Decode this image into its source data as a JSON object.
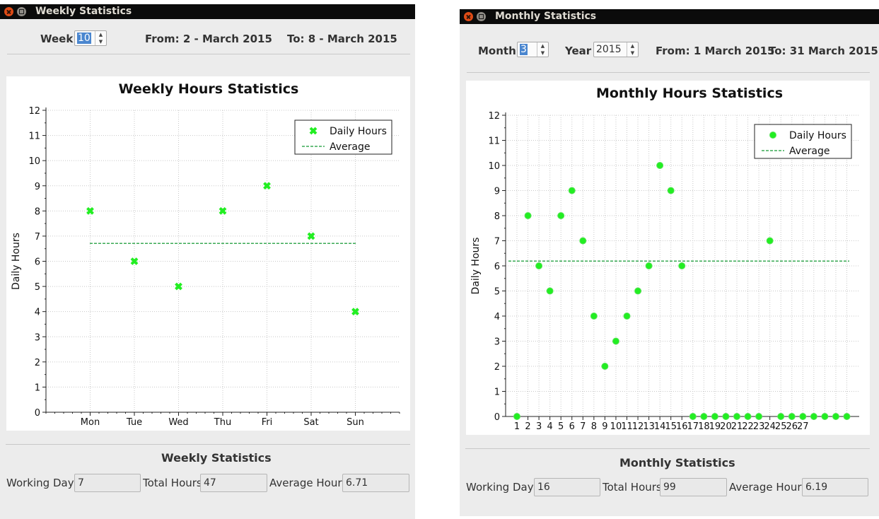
{
  "weekly": {
    "window_title": "Weekly Statistics",
    "week_label": "Week",
    "week_value": "10",
    "from_text": "From: 2 - March 2015",
    "to_text": "To: 8 - March 2015",
    "chart_title": "Weekly Hours Statistics",
    "stats_title": "Weekly Statistics",
    "working_days_label": "Working Days",
    "working_days_value": "7",
    "total_hours_label": "Total Hours",
    "total_hours_value": "47",
    "average_hours_label": "Average Hours",
    "average_hours_value": "6.71"
  },
  "monthly": {
    "window_title": "Monthly Statistics",
    "month_label": "Month",
    "month_value": "3",
    "year_label": "Year",
    "year_value": "2015",
    "from_text": "From: 1 March 2015",
    "to_text": "To: 31 March 2015",
    "chart_title": "Monthly Hours Statistics",
    "stats_title": "Monthly Statistics",
    "working_days_label": "Working Days",
    "working_days_value": "16",
    "total_hours_label": "Total Hours",
    "total_hours_value": "99",
    "average_hours_label": "Average Hours",
    "average_hours_value": "6.19"
  },
  "colors": {
    "point": "#22ee22",
    "average_line": "#3aaa55",
    "title_bar": "#0b0b0b",
    "close_button": "#df4b16"
  },
  "chart_data": [
    {
      "type": "scatter",
      "title": "Weekly Hours Statistics",
      "xlabel": "",
      "ylabel": "Daily Hours",
      "categories": [
        "Mon",
        "Tue",
        "Wed",
        "Thu",
        "Fri",
        "Sat",
        "Sun"
      ],
      "series": [
        {
          "name": "Daily Hours",
          "values": [
            8,
            6,
            5,
            8,
            9,
            7,
            4
          ]
        },
        {
          "name": "Average",
          "values": [
            6.71,
            6.71,
            6.71,
            6.71,
            6.71,
            6.71,
            6.71
          ]
        }
      ],
      "ylim": [
        0,
        12
      ],
      "yticks": [
        "0",
        "1",
        "2",
        "3",
        "4",
        "5",
        "6",
        "7",
        "8",
        "9",
        "10",
        "11",
        "12"
      ],
      "grid": true,
      "legend": "top-right",
      "marker": "x"
    },
    {
      "type": "scatter",
      "title": "Monthly Hours Statistics",
      "xlabel": "",
      "ylabel": "Daily Hours",
      "categories": [
        "1",
        "2",
        "3",
        "4",
        "5",
        "6",
        "7",
        "8",
        "9",
        "10",
        "11",
        "12",
        "13",
        "14",
        "15",
        "16",
        "17",
        "18",
        "19",
        "20",
        "21",
        "22",
        "23",
        "24",
        "25",
        "26",
        "27",
        "28",
        "29",
        "30",
        "31"
      ],
      "xtick_labels": [
        "1",
        "2",
        "3",
        "4",
        "5",
        "6",
        "7",
        "8",
        "9",
        "10",
        "11",
        "12",
        "13",
        "14",
        "15",
        "16",
        "17",
        "18",
        "19",
        "20",
        "21",
        "22",
        "23",
        "24",
        "25",
        "26",
        "27",
        "",
        "",
        "",
        ""
      ],
      "series": [
        {
          "name": "Daily Hours",
          "values": [
            0,
            8,
            6,
            5,
            8,
            9,
            7,
            4,
            2,
            3,
            4,
            5,
            6,
            10,
            9,
            6,
            0,
            0,
            0,
            0,
            0,
            0,
            0,
            7,
            0,
            0,
            0,
            0,
            0,
            0,
            0
          ]
        },
        {
          "name": "Average",
          "values": [
            6.19
          ]
        }
      ],
      "ylim": [
        0,
        12
      ],
      "yticks": [
        "0",
        "1",
        "2",
        "3",
        "4",
        "5",
        "6",
        "7",
        "8",
        "9",
        "10",
        "11",
        "12"
      ],
      "grid": true,
      "legend": "top-right",
      "marker": "circle"
    }
  ]
}
